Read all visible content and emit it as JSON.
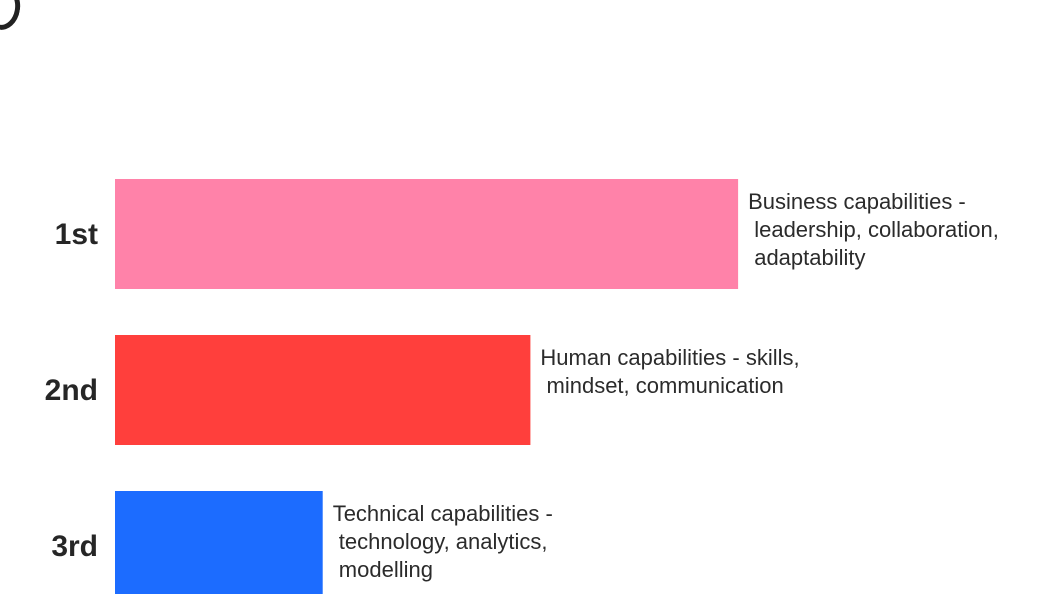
{
  "chart_data": {
    "type": "bar",
    "orientation": "horizontal",
    "categories": [
      "1st",
      "2nd",
      "3rd"
    ],
    "series": [
      {
        "values": [
          3,
          2,
          1
        ],
        "colors": [
          "#ff82a9",
          "#ff3f3c",
          "#1c6cff"
        ]
      }
    ],
    "descriptions": [
      [
        "Business capabilities -",
        " leadership, collaboration,",
        " adaptability"
      ],
      [
        "Human capabilities - skills,",
        " mindset, communication"
      ],
      [
        "Technical capabilities -",
        " technology, analytics,",
        " modelling"
      ]
    ],
    "title": "",
    "xlabel": "",
    "ylabel": "",
    "grid": false,
    "legend": "none"
  }
}
